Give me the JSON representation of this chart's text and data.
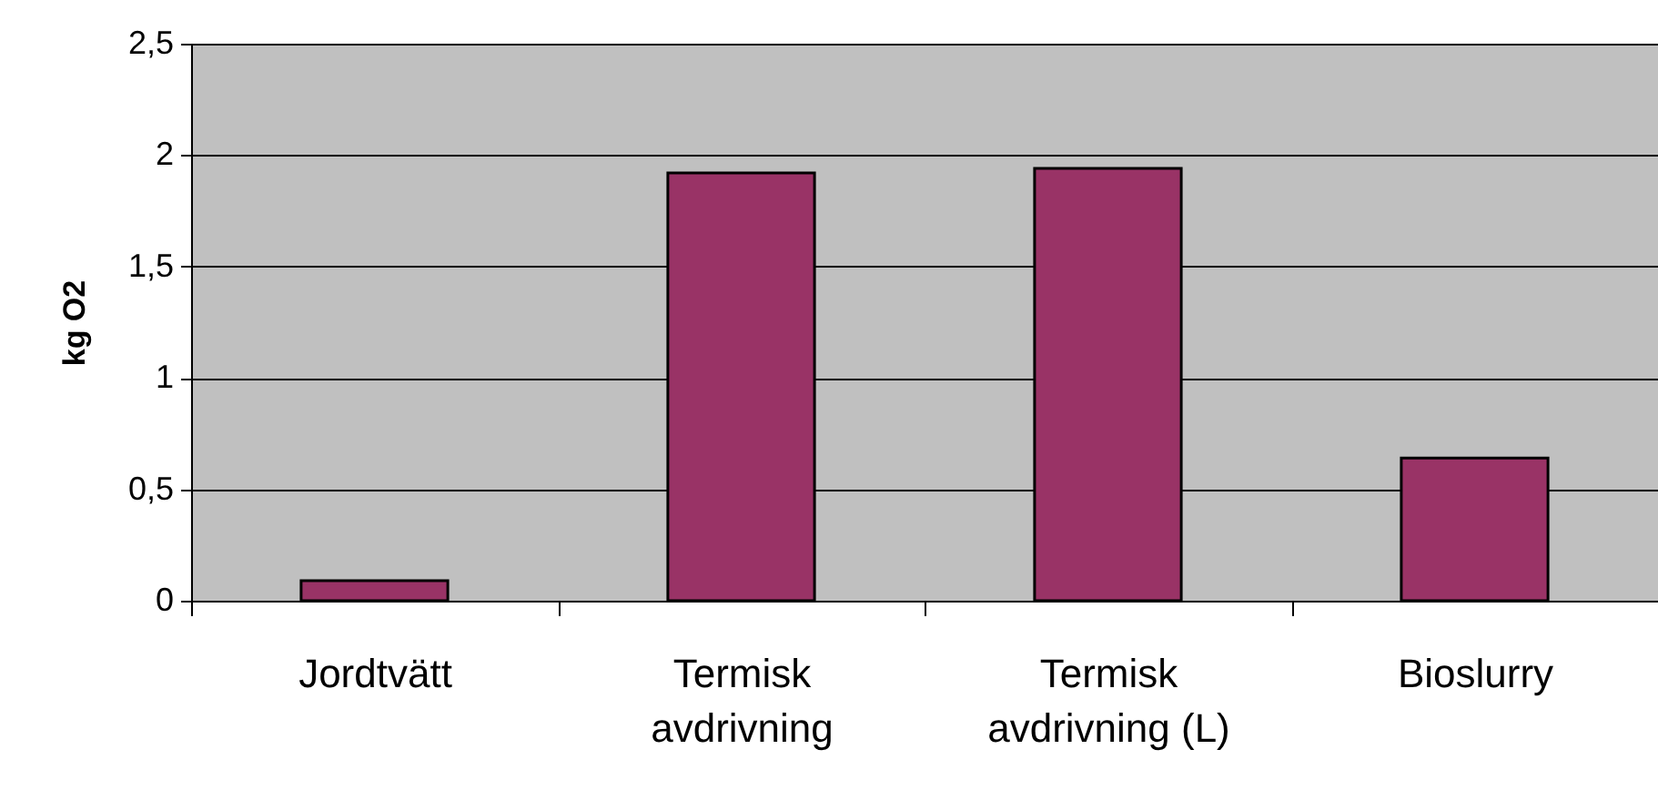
{
  "chart_data": {
    "type": "bar",
    "ylabel": "kg O2",
    "categories": [
      "Jordtvätt",
      "Termisk avdrivning",
      "Termisk avdrivning (L)",
      "Bioslurry"
    ],
    "values": [
      0.09,
      1.92,
      1.94,
      0.64
    ],
    "color": "#993366",
    "ylim": [
      0,
      2.5
    ],
    "yticks": [
      0,
      {
        "value": 0.5,
        "label": "0,5"
      },
      1,
      {
        "value": 1.5,
        "label": "1,5"
      },
      2,
      {
        "value": 2.5,
        "label": "2,5"
      }
    ],
    "grid": "y"
  }
}
